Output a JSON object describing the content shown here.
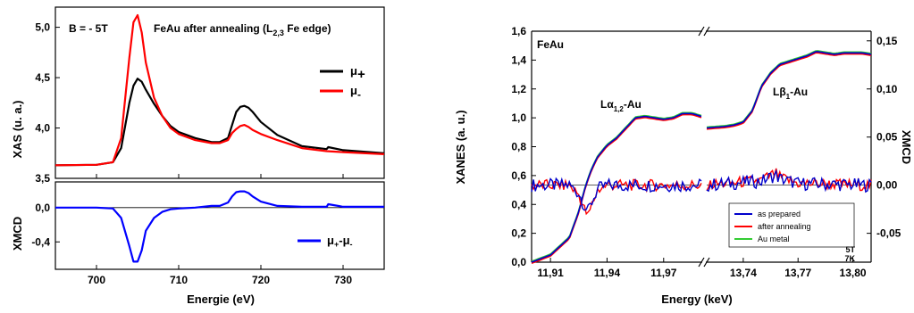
{
  "chart_data": [
    {
      "type": "line",
      "panels": [
        {
          "role": "xas",
          "ylabel": "XAS (u. a.)",
          "ylim": [
            3.5,
            5.2
          ],
          "yticks": [
            "3,5",
            "4,0",
            "4,5",
            "5,0"
          ],
          "title": "FeAu after annealing (L2,3 Fe edge)",
          "annotation": "B = - 5T",
          "series": [
            {
              "name": "μ+",
              "color": "#000000",
              "x": [
                695,
                700,
                702,
                703,
                704,
                704.5,
                705,
                705.5,
                706,
                707,
                708,
                709,
                710,
                712,
                714,
                715,
                716,
                716.5,
                717,
                717.5,
                718,
                718.5,
                719,
                720,
                722,
                725,
                728,
                728.2,
                730,
                735
              ],
              "y": [
                3.63,
                3.635,
                3.66,
                3.8,
                4.25,
                4.42,
                4.49,
                4.46,
                4.38,
                4.24,
                4.12,
                4.02,
                3.96,
                3.9,
                3.86,
                3.86,
                3.9,
                4.03,
                4.16,
                4.21,
                4.22,
                4.2,
                4.16,
                4.06,
                3.93,
                3.82,
                3.79,
                3.81,
                3.78,
                3.75
              ]
            },
            {
              "name": "μ-",
              "color": "#ff0000",
              "x": [
                695,
                700,
                702,
                703,
                704,
                704.5,
                705,
                705.5,
                706,
                707,
                708,
                709,
                710,
                712,
                714,
                715,
                716,
                716.5,
                717,
                717.5,
                718,
                718.5,
                719,
                720,
                722,
                725,
                728,
                730,
                735
              ],
              "y": [
                3.63,
                3.635,
                3.66,
                3.9,
                4.7,
                5.05,
                5.12,
                4.95,
                4.65,
                4.3,
                4.12,
                4.0,
                3.94,
                3.88,
                3.85,
                3.85,
                3.88,
                3.95,
                3.99,
                4.02,
                4.03,
                4.01,
                3.98,
                3.94,
                3.88,
                3.8,
                3.77,
                3.76,
                3.74
              ]
            }
          ]
        },
        {
          "role": "xmcd",
          "ylabel": "XMCD",
          "xlabel": "Energie (eV)",
          "ylim": [
            -0.72,
            0.3
          ],
          "yticks": [
            "0,0",
            "-0,4"
          ],
          "xlim": [
            695,
            735
          ],
          "xticks": [
            "700",
            "710",
            "720",
            "730"
          ],
          "series": [
            {
              "name": "μ+-μ-",
              "color": "#0000ff",
              "x": [
                695,
                700,
                702,
                703,
                704,
                704.5,
                705,
                705.5,
                706,
                707,
                708,
                709,
                710,
                712,
                714,
                715,
                716,
                716.5,
                717,
                717.5,
                718,
                718.5,
                719,
                720,
                722,
                725,
                728,
                728.2,
                730,
                735
              ],
              "y": [
                0,
                0,
                -0.01,
                -0.12,
                -0.45,
                -0.63,
                -0.63,
                -0.5,
                -0.27,
                -0.12,
                -0.05,
                -0.02,
                -0.01,
                0,
                0.02,
                0.02,
                0.06,
                0.13,
                0.18,
                0.19,
                0.19,
                0.17,
                0.13,
                0.07,
                0.02,
                0.01,
                0.01,
                0.04,
                0.01,
                0.01
              ]
            }
          ]
        }
      ]
    },
    {
      "type": "line",
      "label": "FeAu",
      "ylabel": "XANES (a. u.)",
      "y2label": "XMCD",
      "xlabel": "Energy (keV)",
      "ylim": [
        0,
        1.6
      ],
      "yticks": [
        "0,0",
        "0,2",
        "0,4",
        "0,6",
        "0,8",
        "1,0",
        "1,2",
        "1,4",
        "1,6"
      ],
      "y2lim": [
        -0.08,
        0.16
      ],
      "y2ticks": [
        "-0,05",
        "0,00",
        "0,05",
        "0,10",
        "0,15"
      ],
      "segments": [
        {
          "xlim": [
            11.9,
            11.99
          ],
          "xticks": [
            "11,91",
            "11,94",
            "11,97"
          ]
        },
        {
          "xlim": [
            13.72,
            13.81
          ],
          "xticks": [
            "13,74",
            "13,77",
            "13,80"
          ]
        }
      ],
      "annotations": [
        "Lα1,2-Au",
        "Lβ1-Au",
        "5T",
        "7K"
      ],
      "legend_position": "bottom-right",
      "series": [
        {
          "name": "as prepared",
          "color": "#0000cc"
        },
        {
          "name": "after annealing",
          "color": "#ff0000"
        },
        {
          "name": "Au metal",
          "color": "#33cc33"
        }
      ],
      "xanes": {
        "seg1": {
          "x": [
            11.9,
            11.91,
            11.92,
            11.925,
            11.928,
            11.93,
            11.932,
            11.935,
            11.94,
            11.945,
            11.95,
            11.955,
            11.96,
            11.965,
            11.97,
            11.975,
            11.98,
            11.985,
            11.99
          ],
          "y": [
            0.0,
            0.05,
            0.17,
            0.35,
            0.5,
            0.58,
            0.65,
            0.73,
            0.81,
            0.86,
            0.93,
            1.0,
            1.01,
            1.0,
            0.99,
            1.0,
            1.03,
            1.03,
            1.01
          ]
        },
        "seg2": {
          "x": [
            13.72,
            13.73,
            13.735,
            13.74,
            13.745,
            13.75,
            13.755,
            13.76,
            13.765,
            13.77,
            13.775,
            13.78,
            13.785,
            13.79,
            13.795,
            13.8,
            13.805,
            13.81
          ],
          "y": [
            0.93,
            0.94,
            0.95,
            0.97,
            1.05,
            1.22,
            1.31,
            1.37,
            1.39,
            1.41,
            1.43,
            1.46,
            1.45,
            1.44,
            1.45,
            1.45,
            1.45,
            1.44
          ]
        }
      },
      "xmcd": {
        "seg1": {
          "x": [
            11.9,
            11.92,
            11.925,
            11.928,
            11.93,
            11.932,
            11.935,
            11.94,
            11.95,
            11.96,
            11.97,
            11.99
          ],
          "y": [
            0.0,
            0.0,
            -0.01,
            -0.025,
            -0.032,
            -0.02,
            -0.005,
            0.0,
            0.0,
            0.0,
            0.0,
            0.0
          ]
        },
        "seg2": {
          "x": [
            13.72,
            13.75,
            13.755,
            13.758,
            13.76,
            13.77,
            13.81
          ],
          "y": [
            0.0,
            0.005,
            0.01,
            0.012,
            0.008,
            0.002,
            0.0
          ]
        }
      }
    }
  ]
}
